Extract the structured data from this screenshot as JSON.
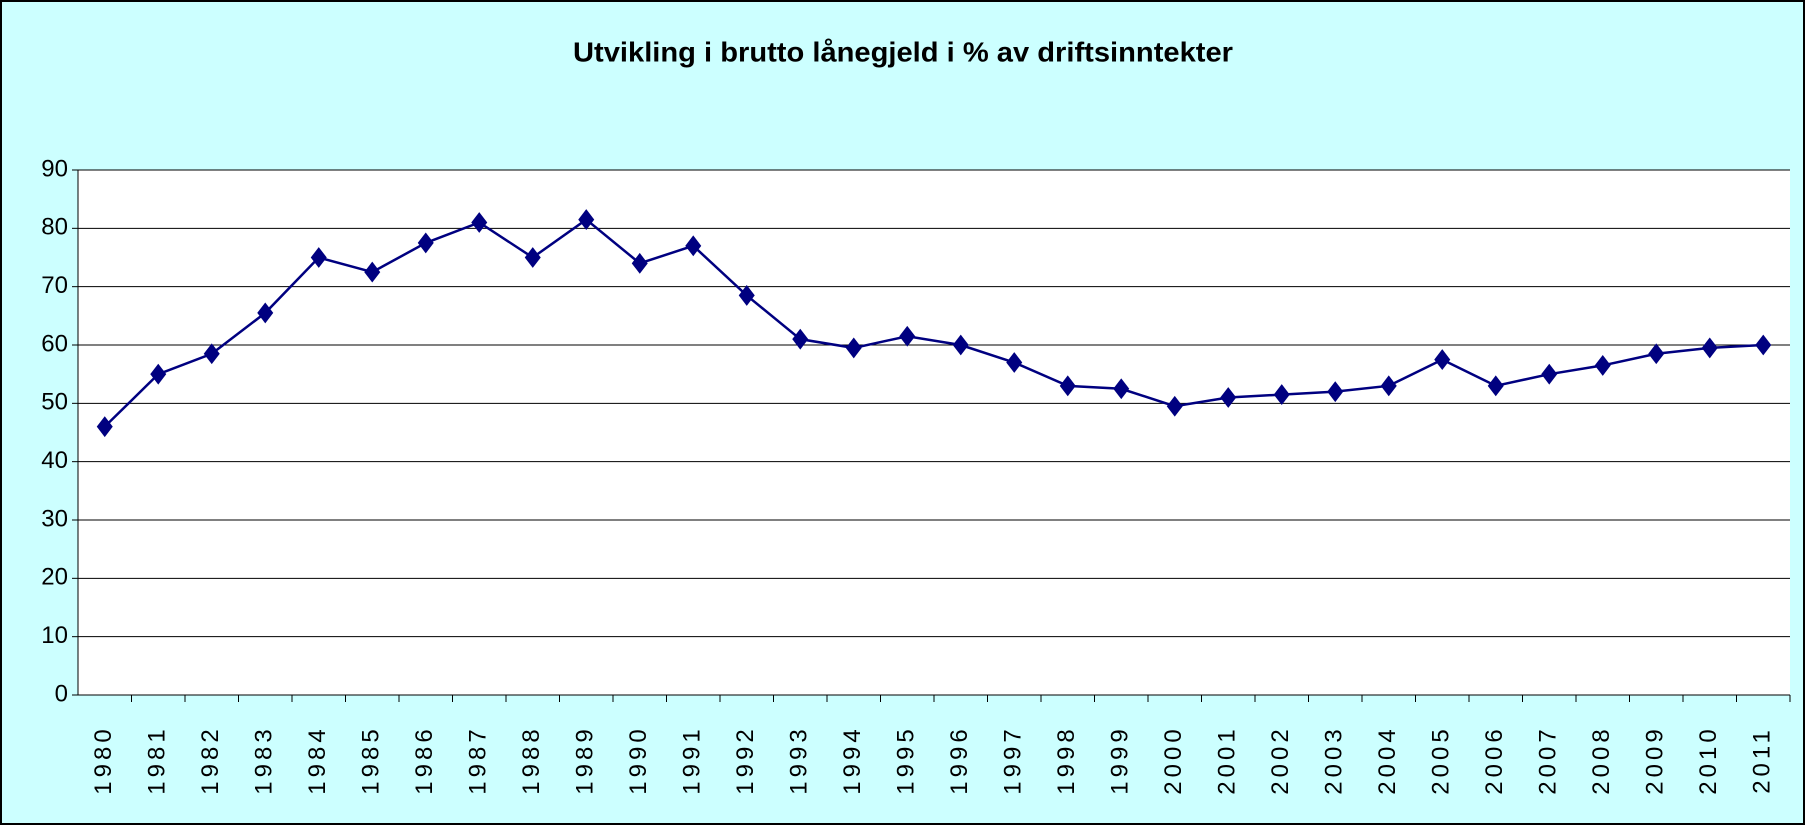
{
  "chart_data": {
    "type": "line",
    "title": "Utvikling i brutto lånegjeld i % av driftsinntekter",
    "categories": [
      "1980",
      "1981",
      "1982",
      "1983",
      "1984",
      "1985",
      "1986",
      "1987",
      "1988",
      "1989",
      "1990",
      "1991",
      "1992",
      "1993",
      "1994",
      "1995",
      "1996",
      "1997",
      "1998",
      "1999",
      "2000",
      "2001",
      "2002",
      "2003",
      "2004",
      "2005",
      "2006",
      "2007",
      "2008",
      "2009",
      "2010",
      "2011"
    ],
    "values": [
      46,
      55,
      58.5,
      65.5,
      75,
      72.5,
      77.5,
      81,
      75,
      81.5,
      74,
      77,
      68.5,
      61,
      59.5,
      61.5,
      60,
      57,
      53,
      52.5,
      49.5,
      51,
      51.5,
      52,
      53,
      57.5,
      53,
      55,
      56.5,
      58.5,
      59.5,
      60
    ],
    "color": "#000080",
    "ylim": [
      0,
      90
    ],
    "yticks": [
      0,
      10,
      20,
      30,
      40,
      50,
      60,
      70,
      80,
      90
    ],
    "grid": true
  }
}
